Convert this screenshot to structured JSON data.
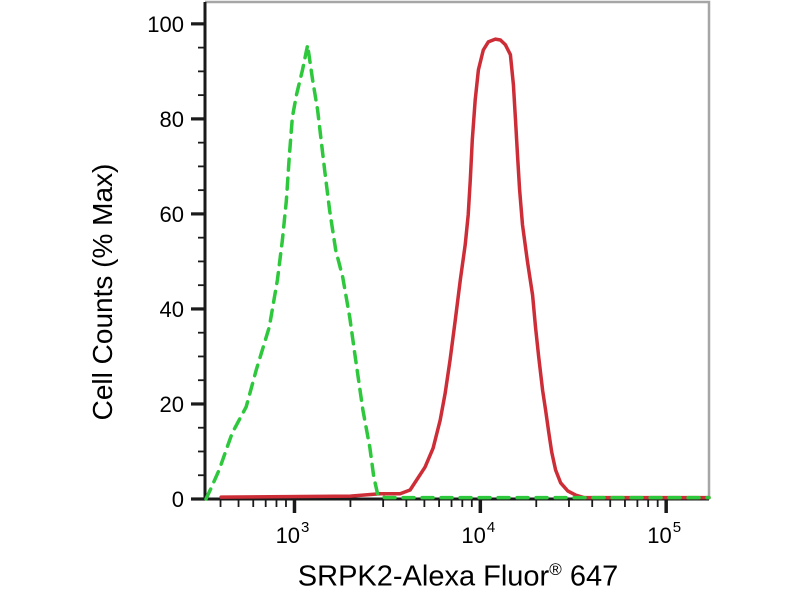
{
  "chart_data": {
    "type": "line",
    "subtype": "flow-cytometry-histogram",
    "title": "",
    "ylabel": "Cell Counts (% Max)",
    "xlabel": {
      "main": "SRPK2-Alexa Fluor",
      "sup": "®",
      "suffix": " 647"
    },
    "grid": false,
    "legend": "none",
    "xaxis": {
      "scale": "log",
      "min": 330,
      "max": 170000,
      "major_ticks": [
        {
          "value": 1000,
          "base": "10",
          "exp": "3"
        },
        {
          "value": 10000,
          "base": "10",
          "exp": "4"
        },
        {
          "value": 100000,
          "base": "10",
          "exp": "5"
        }
      ],
      "minor_ticks": [
        400,
        500,
        600,
        700,
        800,
        900,
        2000,
        3000,
        4000,
        5000,
        6000,
        7000,
        8000,
        9000,
        20000,
        30000,
        40000,
        50000,
        60000,
        70000,
        80000,
        90000
      ]
    },
    "yaxis": {
      "scale": "linear",
      "min": 0,
      "max": 104.6,
      "major_ticks": [
        0,
        20,
        40,
        60,
        80,
        100
      ],
      "minor_ticks": [
        5,
        10,
        15,
        25,
        30,
        35,
        45,
        50,
        55,
        65,
        70,
        75,
        85,
        90,
        95
      ]
    },
    "series": [
      {
        "name": "green-dashed-curve",
        "style": "dashed",
        "color": "#2dc83c",
        "peak": {
          "x": 1180,
          "y_pct": 95.5
        },
        "points": [
          [
            334,
            0
          ],
          [
            356,
            2.3
          ],
          [
            393,
            6.1
          ],
          [
            462,
            13.9
          ],
          [
            550,
            19.4
          ],
          [
            623,
            27.2
          ],
          [
            732,
            36.2
          ],
          [
            809,
            46.1
          ],
          [
            861,
            54.5
          ],
          [
            905,
            62.9
          ],
          [
            939,
            72.4
          ],
          [
            975,
            80.4
          ],
          [
            1025,
            85.1
          ],
          [
            1105,
            90.3
          ],
          [
            1176,
            95.5
          ],
          [
            1251,
            88.2
          ],
          [
            1331,
            81.9
          ],
          [
            1452,
            69.3
          ],
          [
            1546,
            60.8
          ],
          [
            1666,
            52.4
          ],
          [
            1817,
            46.7
          ],
          [
            1982,
            38.3
          ],
          [
            2109,
            30.7
          ],
          [
            2333,
            18.7
          ],
          [
            2543,
            10.9
          ],
          [
            2673,
            4.6
          ],
          [
            2811,
            0.8
          ],
          [
            3065,
            0.3
          ],
          [
            170000,
            0.3
          ]
        ]
      },
      {
        "name": "red-solid-curve",
        "style": "solid",
        "color": "#cd2d37",
        "peak": {
          "x": 12500,
          "y_pct": 96.8
        },
        "points": [
          [
            403,
            0.4
          ],
          [
            2000,
            0.6
          ],
          [
            2880,
            1.1
          ],
          [
            3700,
            1.1
          ],
          [
            4190,
            1.9
          ],
          [
            5040,
            6.7
          ],
          [
            5570,
            10.7
          ],
          [
            6080,
            16.6
          ],
          [
            6470,
            22.3
          ],
          [
            6880,
            29.3
          ],
          [
            7330,
            37.7
          ],
          [
            7800,
            46.1
          ],
          [
            8290,
            53.5
          ],
          [
            8610,
            59.8
          ],
          [
            8830,
            67.2
          ],
          [
            9050,
            75.6
          ],
          [
            9390,
            84.0
          ],
          [
            9760,
            90.3
          ],
          [
            10380,
            94.5
          ],
          [
            11040,
            96.2
          ],
          [
            12050,
            96.8
          ],
          [
            12830,
            96.6
          ],
          [
            13650,
            95.6
          ],
          [
            14520,
            93.5
          ],
          [
            15070,
            87.2
          ],
          [
            15460,
            79.8
          ],
          [
            15850,
            72.4
          ],
          [
            16260,
            65.1
          ],
          [
            16870,
            57.7
          ],
          [
            17950,
            49.9
          ],
          [
            19100,
            42.9
          ],
          [
            19820,
            36.2
          ],
          [
            20610,
            29.9
          ],
          [
            21630,
            22.9
          ],
          [
            22450,
            18.7
          ],
          [
            23340,
            14.1
          ],
          [
            24210,
            9.9
          ],
          [
            25410,
            6.1
          ],
          [
            27040,
            3.4
          ],
          [
            29510,
            1.7
          ],
          [
            32660,
            0.8
          ],
          [
            36060,
            0.3
          ],
          [
            170000,
            0.3
          ]
        ]
      }
    ],
    "colors": {
      "axis": "#1a1a1a",
      "border": "#a6a6a6",
      "background": "#ffffff",
      "tick_label": "#000000"
    }
  }
}
